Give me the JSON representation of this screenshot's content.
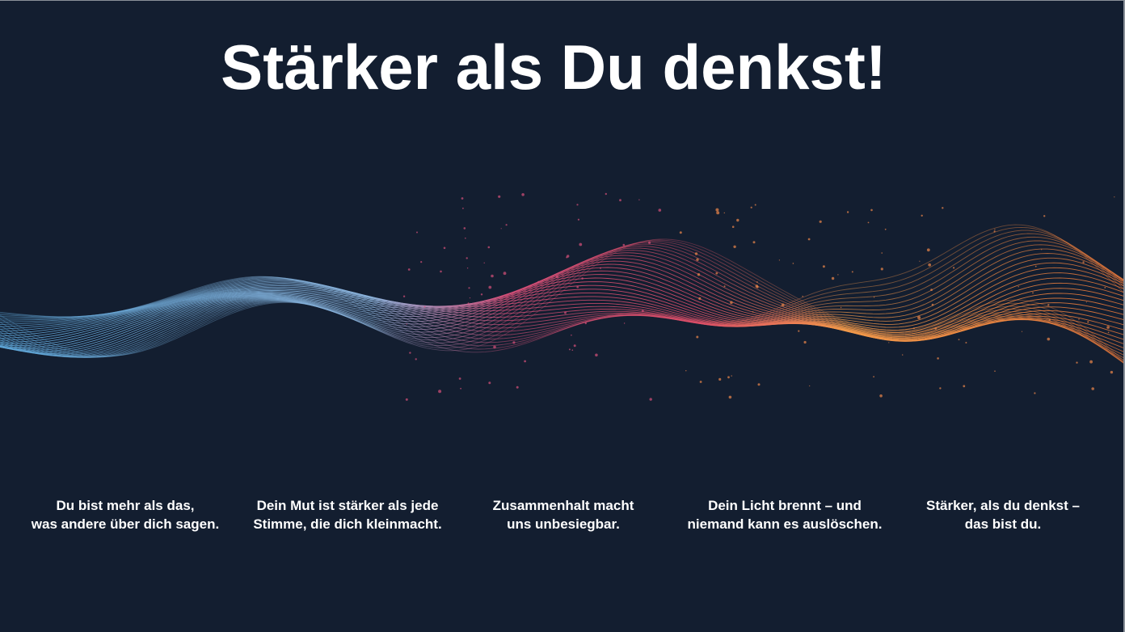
{
  "slide": {
    "title": "Stärker als Du denkst!",
    "background_color": "#131e30",
    "wave_colors": [
      "#5fa9dc",
      "#d9507a",
      "#f39a4a"
    ],
    "captions": [
      {
        "line1": "Du bist mehr als das,",
        "line2": "was andere über dich sagen."
      },
      {
        "line1": "Dein Mut ist stärker als jede",
        "line2": "Stimme, die dich kleinmacht."
      },
      {
        "line1": "Zusammenhalt macht",
        "line2": "uns unbesiegbar."
      },
      {
        "line1": "Dein Licht brennt – und",
        "line2": "niemand kann es auslöschen."
      },
      {
        "line1": "Stärker, als du denkst –",
        "line2": "das bist du."
      }
    ]
  }
}
